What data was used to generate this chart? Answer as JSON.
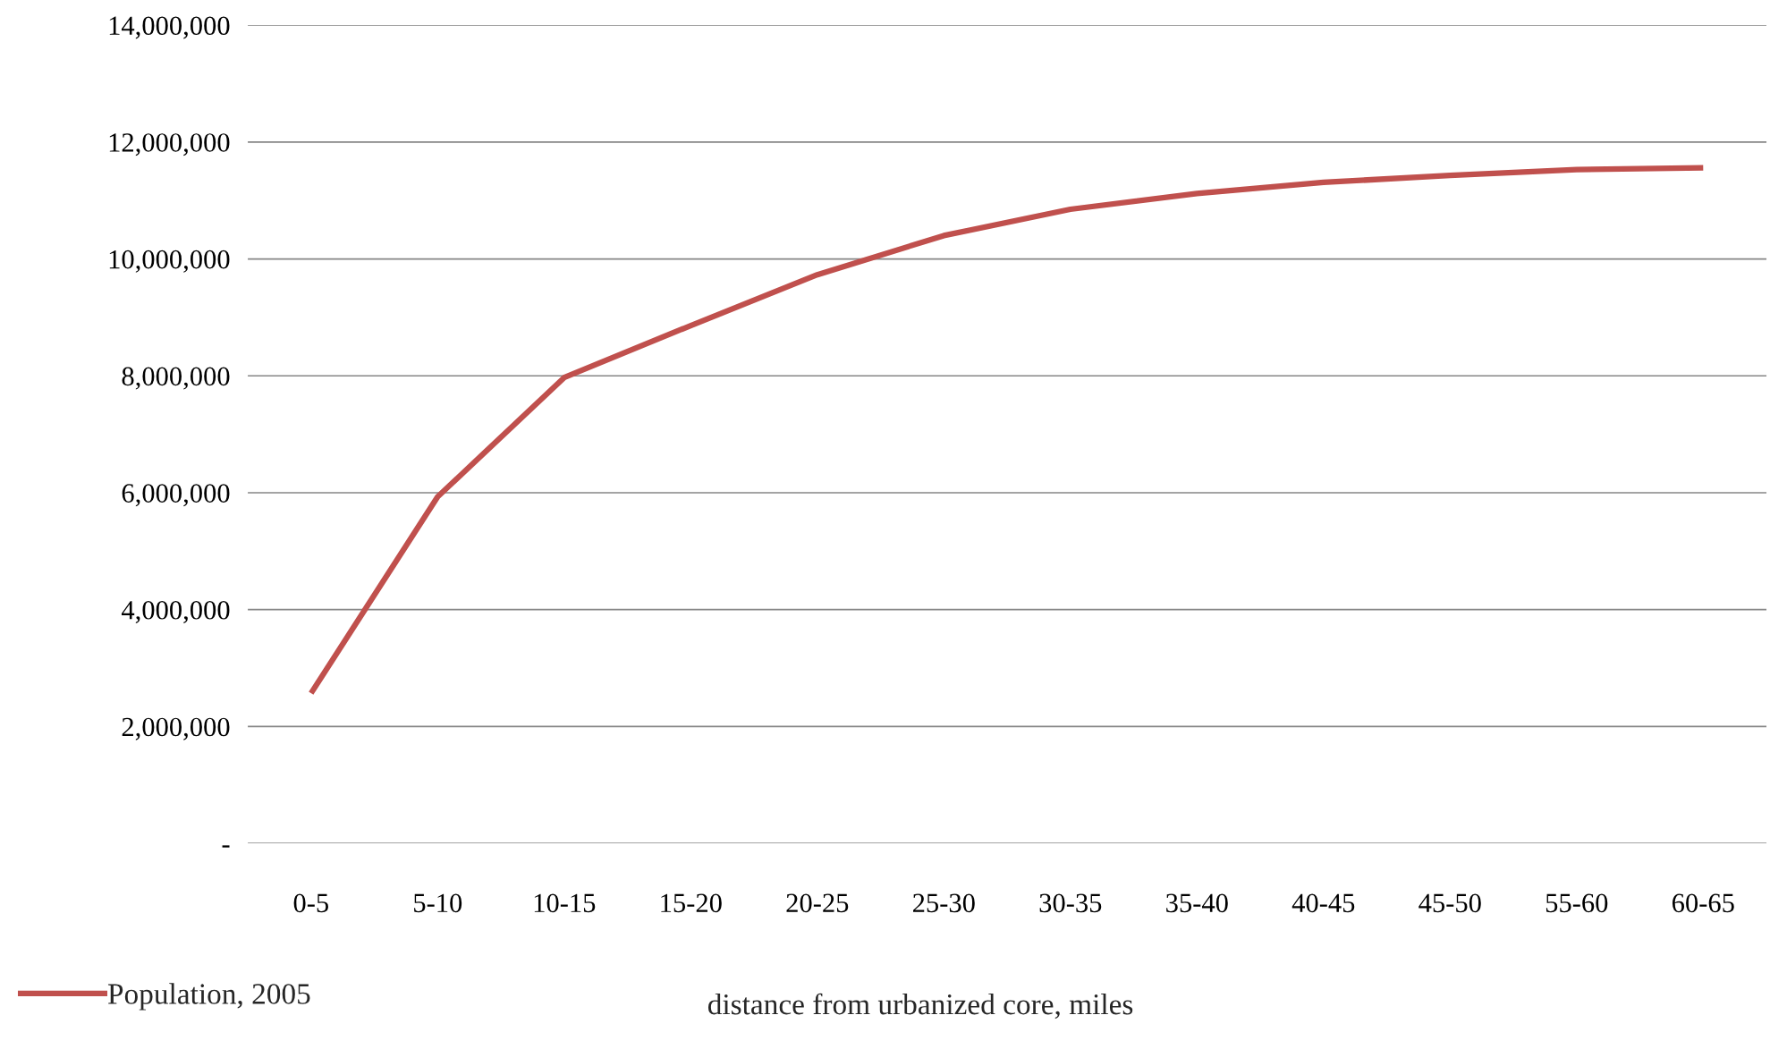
{
  "chart_data": {
    "type": "line",
    "xlabel": "distance from urbanized core, miles",
    "categories": [
      "0-5",
      "5-10",
      "10-15",
      "15-20",
      "20-25",
      "25-30",
      "30-35",
      "35-40",
      "40-45",
      "45-50",
      "55-60",
      "60-65"
    ],
    "series": [
      {
        "name": "Population, 2005",
        "color": "#c0504d",
        "values": [
          2570000,
          5930000,
          7970000,
          8860000,
          9730000,
          10400000,
          10850000,
          11120000,
          11310000,
          11430000,
          11530000,
          11560000
        ]
      }
    ],
    "ylim": [
      0,
      14000000
    ],
    "yticks": [
      {
        "value": 0,
        "label": "-"
      },
      {
        "value": 2000000,
        "label": "2,000,000"
      },
      {
        "value": 4000000,
        "label": "4,000,000"
      },
      {
        "value": 6000000,
        "label": "6,000,000"
      },
      {
        "value": 8000000,
        "label": "8,000,000"
      },
      {
        "value": 10000000,
        "label": "10,000,000"
      },
      {
        "value": 12000000,
        "label": "12,000,000"
      },
      {
        "value": 14000000,
        "label": "14,000,000"
      }
    ],
    "grid": "y",
    "legend": "bottom left",
    "marker": "none",
    "line_style": "solid"
  }
}
